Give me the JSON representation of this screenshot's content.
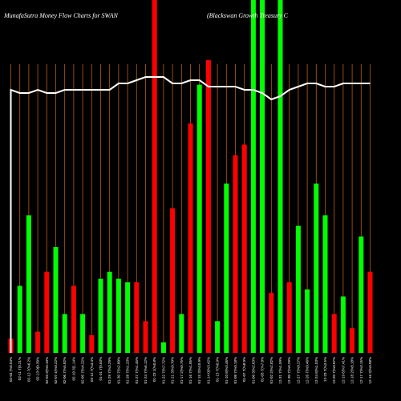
{
  "chart_data": {
    "type": "bar",
    "title_left": "MunafaSutra  Money Flow  Charts for SWAN",
    "title_right": "(Blackswan  Growth  Treasury C",
    "ylim": [
      0,
      100
    ],
    "line_scale": [
      0,
      100
    ],
    "grid": "vertical lines only",
    "colors": {
      "up": "#00ff00",
      "down": "#ff0000",
      "grid": "#b8600f",
      "line": "#ffffff",
      "background": "#000000"
    },
    "categories": [
      "02-04 (%6.04%",
      "02-11 7(0.21%",
      "02-12 7(%6.2%",
      "02-13 0(0.39%",
      "02-03 3(%0.10%",
      "02-07 4(%0.22%",
      "02-06 7(%5.82%",
      "02-10 3(1.14%",
      "02-05 7(%4.22%",
      "02-12 7(%3.4%",
      "01-31 7(0.03%",
      "01-29 7(%3.29%",
      "01-30 7(%2.80%",
      "01-28 7(%1.23%",
      "01-27 7(%1.45%",
      "01-24 7(%6.12%",
      "01-23 1(%0.8%",
      "01-22 7(%7.72%",
      "01-21 3(%0.70%",
      "01-17 2(%0.75%",
      "01-16 7(%1.05%",
      "01-15 3(%10.9%",
      "01-14 0(%3.42%",
      "01-13 7(%0.9%",
      "01-10 8(%3.46%",
      "01-08 7(%0.18%",
      "01-07 7(%8.0%",
      "01-06 3(%2.63%",
      "01-03 7(%7.8%",
      "01-02 2(%2.82%",
      "12-31 7(%1.59%",
      "12-30 7(%0.29%",
      "12-27 7(%0.27%",
      "12-26 7(%0.46%",
      "12-24 8(%1.53%",
      "12-23 7(%3.5%",
      "12-20 7(%0.87%",
      "12-19 6(%7.41%",
      "12-18 2(%8.18%",
      "12-17 7(%3.15%",
      "12-16 3(%0.08%"
    ],
    "series": [
      {
        "type": "bar",
        "directions": [
          "down",
          "up",
          "up",
          "down",
          "down",
          "up",
          "up",
          "down",
          "up",
          "down",
          "up",
          "up",
          "up",
          "up",
          "down",
          "down",
          "down",
          "up",
          "down",
          "up",
          "down",
          "up",
          "down",
          "up",
          "up",
          "down",
          "down",
          "up",
          "up",
          "down",
          "up",
          "down",
          "up",
          "up",
          "up",
          "up",
          "down",
          "up",
          "down",
          "up",
          "down"
        ],
        "values": [
          4,
          19,
          39,
          6,
          23,
          30,
          11,
          19,
          11,
          5,
          21,
          23,
          21,
          20,
          20,
          9,
          100,
          3,
          41,
          11,
          65,
          76,
          83,
          9,
          48,
          56,
          59,
          100,
          100,
          17,
          100,
          20,
          36,
          18,
          48,
          39,
          11,
          16,
          7,
          33,
          23
        ]
      },
      {
        "type": "line",
        "values": [
          82,
          81,
          81,
          82,
          81,
          81,
          82,
          82,
          82,
          82,
          82,
          82,
          84,
          84,
          85,
          86,
          86,
          86,
          84,
          84,
          85,
          85,
          83,
          83,
          83,
          83,
          82,
          82,
          81,
          79,
          80,
          82,
          83,
          84,
          84,
          83,
          83,
          84,
          84,
          84,
          84
        ]
      }
    ]
  }
}
